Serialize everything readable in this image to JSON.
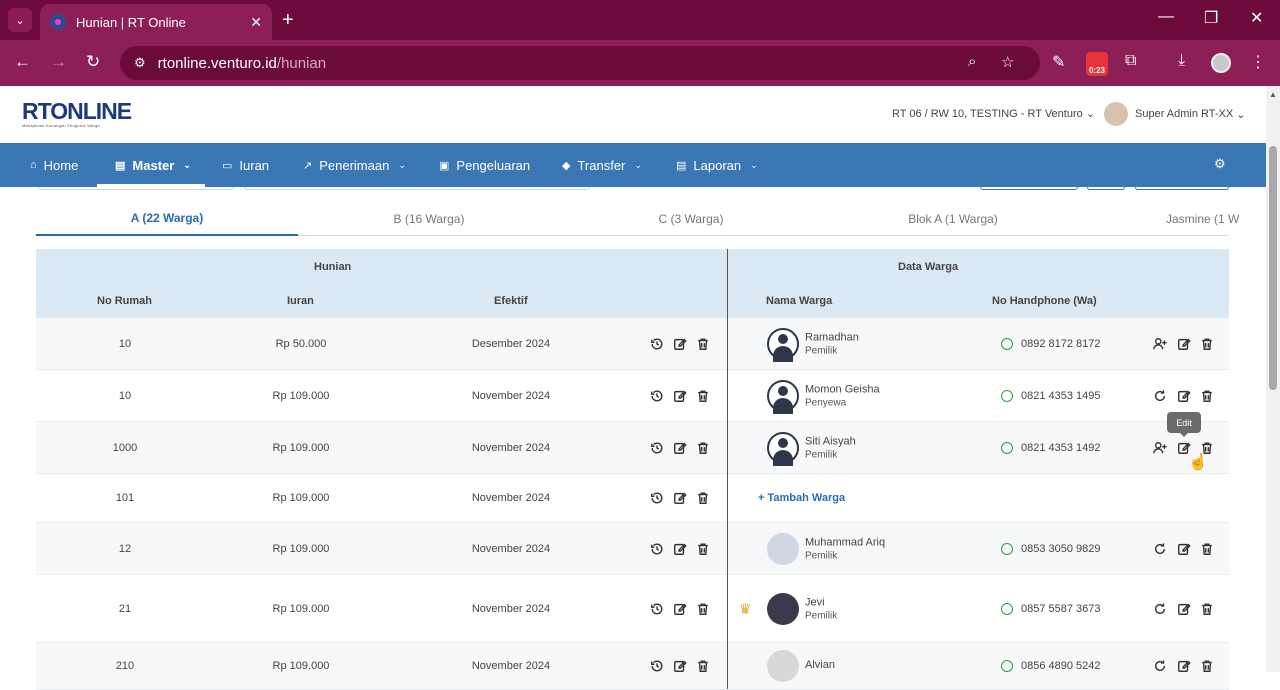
{
  "browser": {
    "tab_title": "Hunian | RT Online",
    "url_host": "rtonline.venturo.id",
    "url_path": "/hunian",
    "badge_text": "0:23"
  },
  "header": {
    "logo_text": "RTONLINE",
    "logo_tagline": "Manajemen Keuangan Pengurus Warga",
    "rt_select": "RT 06 / RW 10, TESTING - RT Venturo",
    "user_name": "Super Admin RT-XX"
  },
  "nav": {
    "home": "Home",
    "master": "Master",
    "iuran": "Iuran",
    "penerimaan": "Penerimaan",
    "pengeluaran": "Pengeluaran",
    "transfer": "Transfer",
    "laporan": "Laporan"
  },
  "tabs": [
    "A (22 Warga)",
    "B (16 Warga)",
    "C (3 Warga)",
    "Blok A (1 Warga)",
    "Jasmine (1 W"
  ],
  "table": {
    "group_hunian": "Hunian",
    "group_warga": "Data Warga",
    "col_no_rumah": "No Rumah",
    "col_iuran": "Iuran",
    "col_efektif": "Efektif",
    "col_nama": "Nama Warga",
    "col_hp": "No Handphone (Wa)",
    "add_warga": "Tambah Warga",
    "rows": [
      {
        "no": "10",
        "iuran": "Rp 50.000",
        "efektif": "Desember 2024",
        "nama": "Ramadhan",
        "status": "Pemilik",
        "hp": "0892 8172 8172"
      },
      {
        "no": "10",
        "iuran": "Rp 109.000",
        "efektif": "November 2024",
        "nama": "Momon Geisha",
        "status": "Penyewa",
        "hp": "0821 4353 1495"
      },
      {
        "no": "1000",
        "iuran": "Rp 109.000",
        "efektif": "November 2024",
        "nama": "Siti Aisyah",
        "status": "Pemilik",
        "hp": "0821 4353 1492"
      },
      {
        "no": "101",
        "iuran": "Rp 109.000",
        "efektif": "November 2024"
      },
      {
        "no": "12",
        "iuran": "Rp 109.000",
        "efektif": "November 2024",
        "nama": "Muhammad Ariq",
        "status": "Pemilik",
        "hp": "0853 3050 9829"
      },
      {
        "no": "21",
        "iuran": "Rp 109.000",
        "efektif": "November 2024",
        "nama": "Jevi",
        "status": "Pemilik",
        "hp": "0857 5587 3673"
      },
      {
        "no": "210",
        "iuran": "Rp 109.000",
        "efektif": "November 2024",
        "nama": "Alvian",
        "hp": "0856 4890 5242"
      }
    ]
  },
  "tooltip": "Edit",
  "colors": {
    "browser": "#8c1f55",
    "navbar": "#3b77b4",
    "table_header": "#dbe9f5",
    "accent": "#2b6cb0",
    "whatsapp": "#25a244"
  }
}
